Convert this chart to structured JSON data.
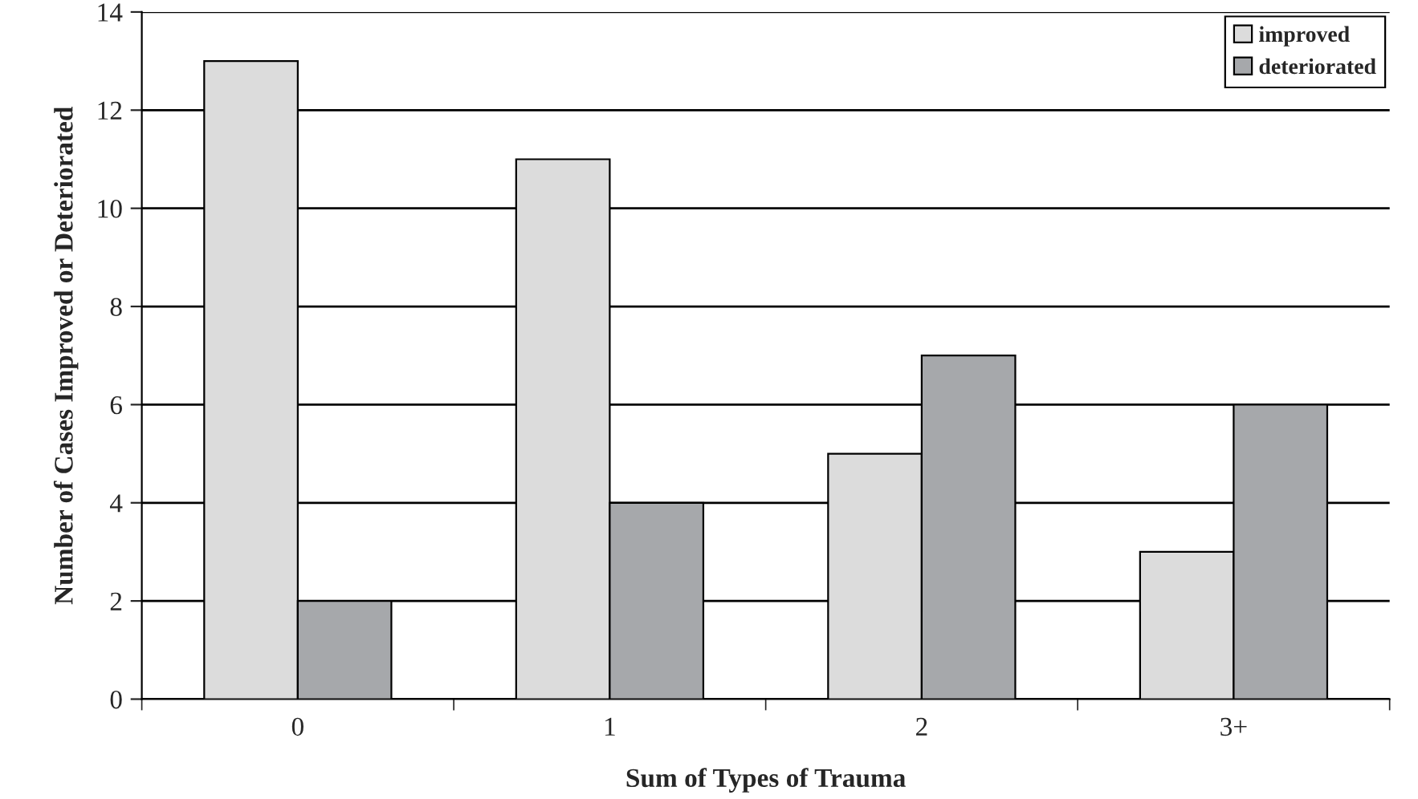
{
  "chart_data": {
    "type": "bar",
    "xlabel": "Sum of Types of Trauma",
    "ylabel": "Number of Cases Improved or Deteriorated",
    "categories": [
      "0",
      "1",
      "2",
      "3+"
    ],
    "series": [
      {
        "name": "improved",
        "color": "#dcdcdc",
        "values": [
          13,
          11,
          5,
          3
        ]
      },
      {
        "name": "deteriorated",
        "color": "#a6a8ab",
        "values": [
          2,
          4,
          7,
          6
        ]
      }
    ],
    "ylim": [
      0,
      14
    ],
    "yticks": [
      0,
      2,
      4,
      6,
      8,
      10,
      12,
      14
    ],
    "grid": "y",
    "legend": "top right"
  }
}
